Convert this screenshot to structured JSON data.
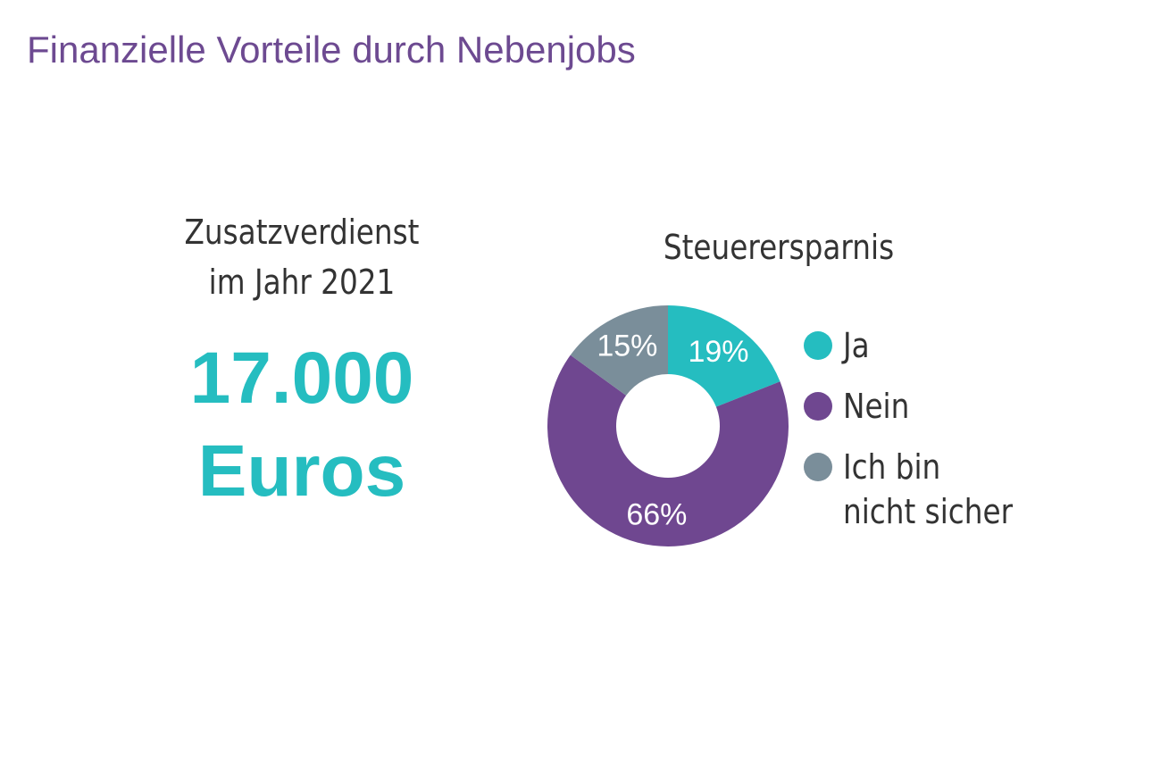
{
  "title": "Finanzielle Vorteile durch Nebenjobs",
  "earnings": {
    "label": "Zusatzverdienst\nim Jahr 2021",
    "value": "17.000\nEuros"
  },
  "colors": {
    "title": "#6d4a91",
    "highlight": "#25bdc0"
  },
  "chart_data": {
    "type": "pie",
    "title": "Steuerersparnis",
    "donut": true,
    "categories": [
      "Ja",
      "Nein",
      "Ich bin\nnicht sicher"
    ],
    "values": [
      19,
      66,
      15
    ],
    "labels": [
      "19%",
      "66%",
      "15%"
    ],
    "colors": [
      "#25bdc0",
      "#6f4790",
      "#7a8e9a"
    ],
    "legend": "right"
  }
}
